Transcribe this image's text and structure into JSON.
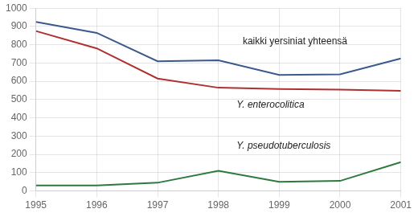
{
  "chart_data": {
    "type": "line",
    "x": [
      1995,
      1996,
      1997,
      1998,
      1999,
      2000,
      2001
    ],
    "series": [
      {
        "color": "#3a5a8c",
        "values": [
          925,
          865,
          710,
          715,
          635,
          638,
          725
        ]
      },
      {
        "color": "#b03030",
        "values": [
          875,
          780,
          615,
          565,
          558,
          555,
          548
        ]
      },
      {
        "color": "#2e7a3e",
        "values": [
          30,
          30,
          45,
          110,
          50,
          55,
          158
        ]
      }
    ],
    "xlim": [
      1995,
      2001
    ],
    "xticks": [
      1995,
      1996,
      1997,
      1998,
      1999,
      2000,
      2001
    ],
    "ylim": [
      0,
      1000
    ],
    "yticks": [
      0,
      100,
      200,
      300,
      400,
      500,
      600,
      700,
      800,
      900,
      1000
    ],
    "grid": true,
    "annotations": [
      {
        "text": "kaikki yersiniat yhteensä",
        "x": 1998.4,
        "y": 790
      },
      {
        "text": "Y. enterocolitica",
        "x": 1998.3,
        "y": 445
      },
      {
        "text": "Y. pseudotuberculosis",
        "x": 1998.3,
        "y": 218
      }
    ]
  }
}
